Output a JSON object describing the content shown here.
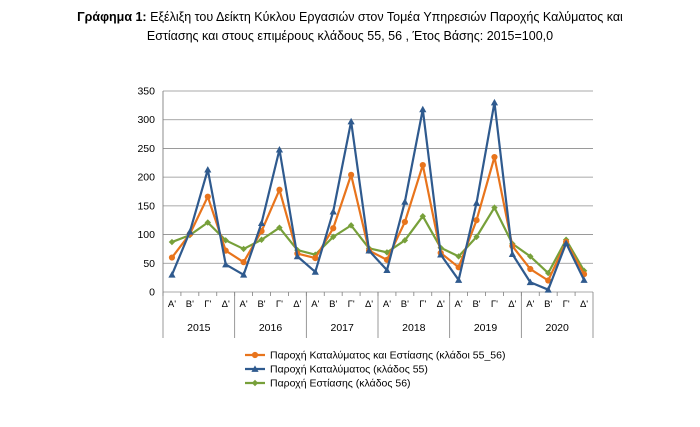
{
  "title_bold": "Γράφημα 1:",
  "title_line1": "Εξέλιξη του Δείκτη Κύκλου Εργασιών στον Τομέα Υπηρεσιών Παροχής Καλύματος και",
  "title_line2": "Εστίασης και στους επιμέρους κλάδους 55, 56 , Έτος Βάσης: 2015=100,0",
  "chart_data": {
    "type": "line",
    "title": "Εξέλιξη του Δείκτη Κύκλου Εργασιών στον Τομέα Υπηρεσιών Παροχής Καλύματος και Εστίασης και στους επιμέρους κλάδους 55, 56 , Έτος Βάσης: 2015=100,0",
    "quarters": [
      "Α'",
      "Β'",
      "Γ'",
      "Δ'"
    ],
    "years": [
      "2015",
      "2016",
      "2017",
      "2018",
      "2019",
      "2020"
    ],
    "ylim": [
      0,
      350
    ],
    "yticks": [
      0,
      50,
      100,
      150,
      200,
      250,
      300,
      350
    ],
    "grid": true,
    "legend_position": "bottom",
    "series": [
      {
        "name": "Παροχή Καταλύματος και Εστίασης (κλάδοι 55_56)",
        "color": "#E8741C",
        "marker": "circle",
        "values": [
          60,
          101,
          166,
          72,
          52,
          106,
          178,
          67,
          59,
          111,
          204,
          72,
          56,
          122,
          221,
          68,
          43,
          125,
          235,
          80,
          40,
          20,
          87,
          31
        ]
      },
      {
        "name": "Παροχή Καταλύματος  (κλάδος 55)",
        "color": "#2F5A8E",
        "marker": "triangle",
        "values": [
          30,
          105,
          213,
          48,
          30,
          120,
          248,
          62,
          35,
          140,
          297,
          72,
          38,
          157,
          318,
          65,
          21,
          155,
          330,
          66,
          17,
          4,
          85,
          21
        ]
      },
      {
        "name": "Παροχή Εστίασης  (κλάδος 56)",
        "color": "#77A03A",
        "marker": "diamond",
        "values": [
          87,
          99,
          121,
          90,
          75,
          91,
          112,
          73,
          65,
          96,
          116,
          76,
          69,
          90,
          132,
          77,
          62,
          96,
          147,
          84,
          62,
          33,
          91,
          37
        ]
      }
    ]
  }
}
